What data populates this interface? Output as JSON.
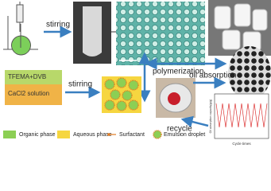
{
  "steps": {
    "stirring_top": "stirring",
    "stirring_bottom": "stirring",
    "polymerization": "polymerization",
    "oil_absorption": "oil absorption",
    "recycle": "recycle"
  },
  "phases": {
    "organic": "TFEMA+DVB",
    "aqueous": "CaCl2 solution"
  },
  "legend": [
    "Organic phase",
    "Aqueous phase",
    "Surfactant",
    "Emulsion droplet"
  ],
  "plot": {
    "x_label": "Cycle times",
    "y_label": "Oil absorption capacity(g/g)"
  }
}
